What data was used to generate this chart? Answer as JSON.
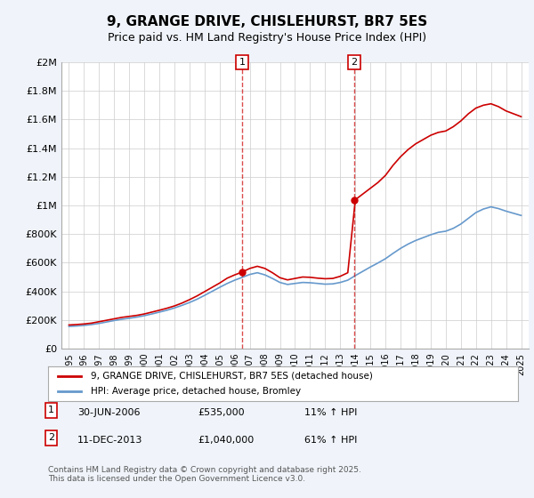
{
  "title": "9, GRANGE DRIVE, CHISLEHURST, BR7 5ES",
  "subtitle": "Price paid vs. HM Land Registry's House Price Index (HPI)",
  "legend_line1": "9, GRANGE DRIVE, CHISLEHURST, BR7 5ES (detached house)",
  "legend_line2": "HPI: Average price, detached house, Bromley",
  "footer": "Contains HM Land Registry data © Crown copyright and database right 2025.\nThis data is licensed under the Open Government Licence v3.0.",
  "sale1_date": "30-JUN-2006",
  "sale1_price": 535000,
  "sale1_label": "11% ↑ HPI",
  "sale2_date": "11-DEC-2013",
  "sale2_price": 1040000,
  "sale2_label": "61% ↑ HPI",
  "sale1_x": 2006.5,
  "sale2_x": 2013.92,
  "red_color": "#cc0000",
  "blue_color": "#6699cc",
  "background_color": "#f0f4fa",
  "plot_bg": "#ffffff",
  "ylim": [
    0,
    2000000
  ],
  "xlim": [
    1994.5,
    2025.5
  ],
  "yticks": [
    0,
    200000,
    400000,
    600000,
    800000,
    1000000,
    1200000,
    1400000,
    1600000,
    1800000,
    2000000
  ],
  "ytick_labels": [
    "£0",
    "£200K",
    "£400K",
    "£600K",
    "£800K",
    "£1M",
    "£1.2M",
    "£1.4M",
    "£1.6M",
    "£1.8M",
    "£2M"
  ],
  "red_x": [
    1995,
    1995.5,
    1996,
    1996.5,
    1997,
    1997.5,
    1998,
    1998.5,
    1999,
    1999.5,
    2000,
    2000.5,
    2001,
    2001.5,
    2002,
    2002.5,
    2003,
    2003.5,
    2004,
    2004.5,
    2005,
    2005.5,
    2006,
    2006.5,
    2007,
    2007.5,
    2008,
    2008.5,
    2009,
    2009.5,
    2010,
    2010.5,
    2011,
    2011.5,
    2012,
    2012.5,
    2013,
    2013.5,
    2014,
    2014.5,
    2015,
    2015.5,
    2016,
    2016.5,
    2017,
    2017.5,
    2018,
    2018.5,
    2019,
    2019.5,
    2020,
    2020.5,
    2021,
    2021.5,
    2022,
    2022.5,
    2023,
    2023.5,
    2024,
    2024.5,
    2025
  ],
  "red_y": [
    165000,
    168000,
    172000,
    178000,
    188000,
    198000,
    208000,
    218000,
    225000,
    232000,
    242000,
    255000,
    268000,
    282000,
    298000,
    318000,
    342000,
    368000,
    398000,
    428000,
    458000,
    492000,
    515000,
    535000,
    560000,
    575000,
    560000,
    530000,
    495000,
    480000,
    490000,
    500000,
    498000,
    492000,
    488000,
    490000,
    505000,
    530000,
    1040000,
    1080000,
    1120000,
    1160000,
    1210000,
    1280000,
    1340000,
    1390000,
    1430000,
    1460000,
    1490000,
    1510000,
    1520000,
    1550000,
    1590000,
    1640000,
    1680000,
    1700000,
    1710000,
    1690000,
    1660000,
    1640000,
    1620000
  ],
  "blue_x": [
    1995,
    1995.5,
    1996,
    1996.5,
    1997,
    1997.5,
    1998,
    1998.5,
    1999,
    1999.5,
    2000,
    2000.5,
    2001,
    2001.5,
    2002,
    2002.5,
    2003,
    2003.5,
    2004,
    2004.5,
    2005,
    2005.5,
    2006,
    2006.5,
    2007,
    2007.5,
    2008,
    2008.5,
    2009,
    2009.5,
    2010,
    2010.5,
    2011,
    2011.5,
    2012,
    2012.5,
    2013,
    2013.5,
    2014,
    2014.5,
    2015,
    2015.5,
    2016,
    2016.5,
    2017,
    2017.5,
    2018,
    2018.5,
    2019,
    2019.5,
    2020,
    2020.5,
    2021,
    2021.5,
    2022,
    2022.5,
    2023,
    2023.5,
    2024,
    2024.5,
    2025
  ],
  "blue_y": [
    155000,
    158000,
    162000,
    168000,
    176000,
    186000,
    196000,
    205000,
    212000,
    220000,
    230000,
    242000,
    255000,
    268000,
    284000,
    302000,
    322000,
    345000,
    372000,
    400000,
    428000,
    455000,
    478000,
    498000,
    518000,
    530000,
    515000,
    490000,
    462000,
    448000,
    455000,
    462000,
    460000,
    455000,
    450000,
    452000,
    462000,
    478000,
    510000,
    540000,
    570000,
    598000,
    628000,
    665000,
    700000,
    730000,
    755000,
    775000,
    795000,
    812000,
    820000,
    840000,
    870000,
    910000,
    950000,
    975000,
    990000,
    978000,
    960000,
    945000,
    930000
  ]
}
